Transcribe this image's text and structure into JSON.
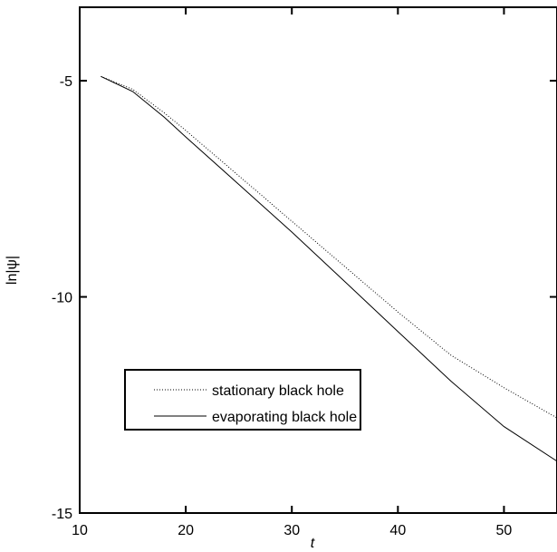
{
  "chart_data": {
    "type": "line",
    "xlabel": "t",
    "ylabel": "ln|ψ|",
    "xlim": [
      10,
      55
    ],
    "ylim": [
      -15,
      -3.3
    ],
    "xticks": [
      10,
      20,
      30,
      40,
      50
    ],
    "yticks": [
      -15,
      -10,
      -5
    ],
    "xtick_labels": [
      "10",
      "20",
      "30",
      "40",
      "50"
    ],
    "ytick_labels": [
      "-15",
      "-10",
      "-5"
    ],
    "grid": false,
    "legend_placement": "lower-left",
    "series": [
      {
        "name": "stationary black hole",
        "style": "dotted",
        "color": "#000000",
        "x": [
          12,
          15,
          18,
          20,
          25,
          30,
          35,
          40,
          45,
          50,
          55
        ],
        "y": [
          -4.9,
          -5.2,
          -5.75,
          -6.15,
          -7.2,
          -8.25,
          -9.3,
          -10.35,
          -11.35,
          -12.1,
          -12.8
        ]
      },
      {
        "name": "evaporating black hole",
        "style": "solid",
        "color": "#000000",
        "x": [
          12,
          15,
          18,
          20,
          25,
          30,
          35,
          40,
          45,
          50,
          55
        ],
        "y": [
          -4.9,
          -5.25,
          -5.85,
          -6.3,
          -7.4,
          -8.5,
          -9.65,
          -10.8,
          -11.95,
          -13.0,
          -13.8
        ]
      }
    ]
  }
}
